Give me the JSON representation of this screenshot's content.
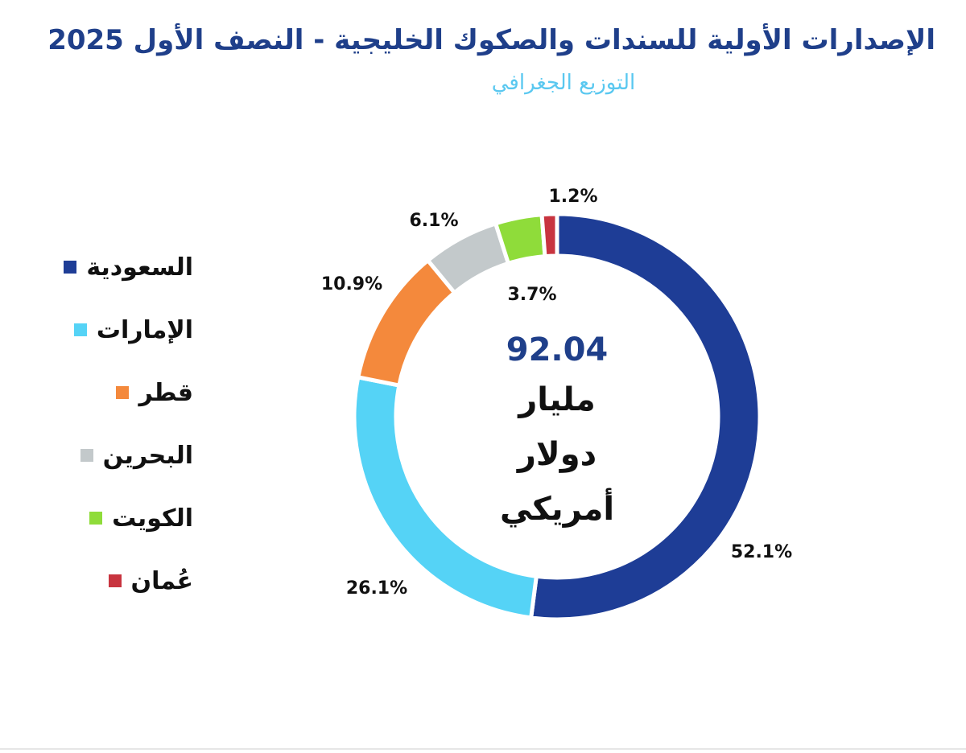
{
  "chart_data": {
    "type": "pie",
    "title": "الإصدارات الأولية للسندات والصكوك الخليجية - النصف الأول 2025",
    "subtitle": "التوزيع الجغرافي",
    "center_value": "92.04",
    "center_unit_lines": [
      "مليار",
      "دولار",
      "أمريكي"
    ],
    "legend_position": "left",
    "slices": [
      {
        "name": "السعودية",
        "value": 52.1,
        "label": "52.1%",
        "color": "#1e3d96"
      },
      {
        "name": "الإمارات",
        "value": 26.1,
        "label": "26.1%",
        "color": "#55d3f6"
      },
      {
        "name": "قطر",
        "value": 10.9,
        "label": "10.9%",
        "color": "#f4893c"
      },
      {
        "name": "البحرين",
        "value": 6.1,
        "label": "6.1%",
        "color": "#c3c9cb"
      },
      {
        "name": "الكويت",
        "value": 3.7,
        "label": "3.7%",
        "color": "#8fdc3a"
      },
      {
        "name": "عُمان",
        "value": 1.2,
        "label": "1.2%",
        "color": "#c8343f"
      }
    ]
  }
}
